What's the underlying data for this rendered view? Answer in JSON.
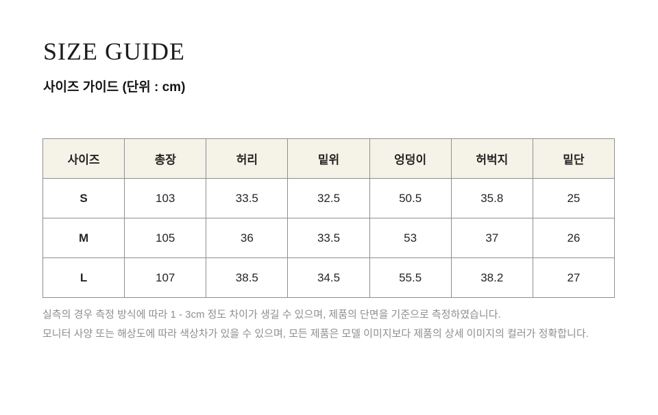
{
  "page": {
    "title": "SIZE GUIDE",
    "subtitle": "사이즈 가이드 (단위 : cm)"
  },
  "size_table": {
    "columns": [
      "사이즈",
      "총장",
      "허리",
      "밑위",
      "엉덩이",
      "허벅지",
      "밑단"
    ],
    "rows": [
      {
        "size": "S",
        "values": [
          "103",
          "33.5",
          "32.5",
          "50.5",
          "35.8",
          "25"
        ]
      },
      {
        "size": "M",
        "values": [
          "105",
          "36",
          "33.5",
          "53",
          "37",
          "26"
        ]
      },
      {
        "size": "L",
        "values": [
          "107",
          "38.5",
          "34.5",
          "55.5",
          "38.2",
          "27"
        ]
      }
    ]
  },
  "notes": [
    "실측의 경우 측정 방식에 따라 1 - 3cm 정도 차이가 생길 수 있으며, 제품의 단면을 기준으로 측정하였습니다.",
    "모니터 사양 또는 해상도에 따라 색상차가 있을 수 있으며, 모든 제품은 모델 이미지보다 제품의 상세 이미지의 컬러가 정확합니다."
  ],
  "colors": {
    "header_bg": "#f5f2e8",
    "border": "#8d8d8d",
    "text": "#242424",
    "note_text": "#8e8e8e"
  }
}
